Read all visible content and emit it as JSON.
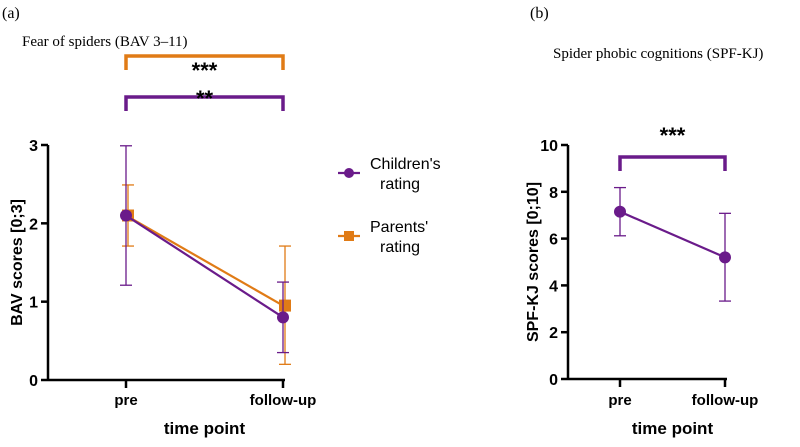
{
  "colors": {
    "children": "#6a1b8a",
    "parents": "#e07b16",
    "axis": "#000000"
  },
  "chart_data": [
    {
      "type": "line",
      "panel_label": "(a)",
      "title": "Fear of spiders (BAV 3–11)",
      "xlabel": "time point",
      "ylabel": "BAV scores [0;3]",
      "categories": [
        "pre",
        "follow-up"
      ],
      "ylim": [
        0,
        3
      ],
      "yticks": [
        "0",
        "1",
        "2",
        "3"
      ],
      "series": [
        {
          "name": "Children's rating",
          "marker": "circle",
          "color": "#6a1b8a",
          "values": [
            2.1,
            0.8
          ],
          "err_low": [
            1.21,
            0.35
          ],
          "err_high": [
            2.99,
            1.25
          ]
        },
        {
          "name": "Parents' rating",
          "marker": "square",
          "color": "#e07b16",
          "values": [
            2.1,
            0.95
          ],
          "err_low": [
            1.71,
            0.2
          ],
          "err_high": [
            2.49,
            1.71
          ]
        }
      ],
      "legend": {
        "placement": "right",
        "entries": [
          "Children's\nrating",
          "Parents'\nrating"
        ]
      },
      "annotations": [
        {
          "text": "***",
          "color": "#e07b16",
          "between": [
            "pre",
            "follow-up"
          ]
        },
        {
          "text": "**",
          "color": "#6a1b8a",
          "between": [
            "pre",
            "follow-up"
          ]
        }
      ]
    },
    {
      "type": "line",
      "panel_label": "(b)",
      "title": "Spider phobic cognitions (SPF-KJ)",
      "xlabel": "time point",
      "ylabel": "SPF-KJ scores [0;10]",
      "categories": [
        "pre",
        "follow-up"
      ],
      "ylim": [
        0,
        10
      ],
      "yticks": [
        "0",
        "2",
        "4",
        "6",
        "8",
        "10"
      ],
      "series": [
        {
          "marker": "circle",
          "color": "#6a1b8a",
          "values": [
            7.15,
            5.2
          ],
          "err_low": [
            6.12,
            3.33
          ],
          "err_high": [
            8.18,
            7.08
          ]
        }
      ],
      "annotations": [
        {
          "text": "***",
          "color": "#6a1b8a",
          "between": [
            "pre",
            "follow-up"
          ]
        }
      ]
    }
  ]
}
